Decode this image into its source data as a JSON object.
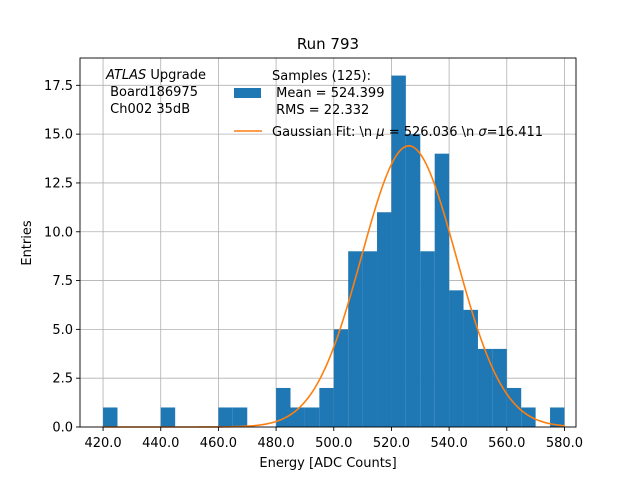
{
  "chart_data": {
    "type": "bar",
    "title": "Run 793",
    "xlabel": "Energy [ADC Counts]",
    "ylabel": "Entries",
    "xlim": [
      412,
      584
    ],
    "ylim": [
      0,
      18.9
    ],
    "grid": true,
    "xticks": [
      420,
      440,
      460,
      480,
      500,
      520,
      540,
      560,
      580
    ],
    "xtick_labels": [
      "420.0",
      "440.0",
      "460.0",
      "480.0",
      "500.0",
      "520.0",
      "540.0",
      "560.0",
      "580.0"
    ],
    "yticks": [
      0,
      2.5,
      5,
      7.5,
      10,
      12.5,
      15,
      17.5
    ],
    "ytick_labels": [
      "0.0",
      "2.5",
      "5.0",
      "7.5",
      "10.0",
      "12.5",
      "15.0",
      "17.5"
    ],
    "histogram": {
      "bin_edges": [
        420,
        425,
        430,
        435,
        440,
        445,
        450,
        455,
        460,
        465,
        470,
        475,
        480,
        485,
        490,
        495,
        500,
        505,
        510,
        515,
        520,
        525,
        530,
        535,
        540,
        545,
        550,
        555,
        560,
        565,
        570,
        575,
        580
      ],
      "counts": [
        1,
        0,
        0,
        0,
        1,
        0,
        0,
        0,
        1,
        1,
        0,
        0,
        2,
        1,
        1,
        2,
        5,
        9,
        9,
        11,
        18,
        15,
        9,
        14,
        7,
        6,
        4,
        4,
        2,
        1,
        0,
        1
      ],
      "color": "#1f77b4"
    },
    "fit": {
      "mu": 526.036,
      "sigma": 16.411,
      "peak": 14.4,
      "color": "#ff7f0e"
    },
    "legend": {
      "placement": "upper-center",
      "entries": [
        {
          "label_lines": [
            "Samples (125):",
            " Mean = 524.399",
            " RMS = 22.332"
          ],
          "color": "#1f77b4"
        },
        {
          "label_prefix": "Gaussian Fit: \\n ",
          "mu_symbol": "μ",
          "label_mid": " = 526.036 \\n ",
          "sigma_symbol": "σ",
          "label_suffix": "=16.411",
          "color": "#ff7f0e"
        }
      ]
    },
    "annotation": {
      "italic": "ATLAS",
      "rest": " Upgrade",
      "line2": " Board186975",
      "line3": " Ch002 35dB"
    }
  }
}
